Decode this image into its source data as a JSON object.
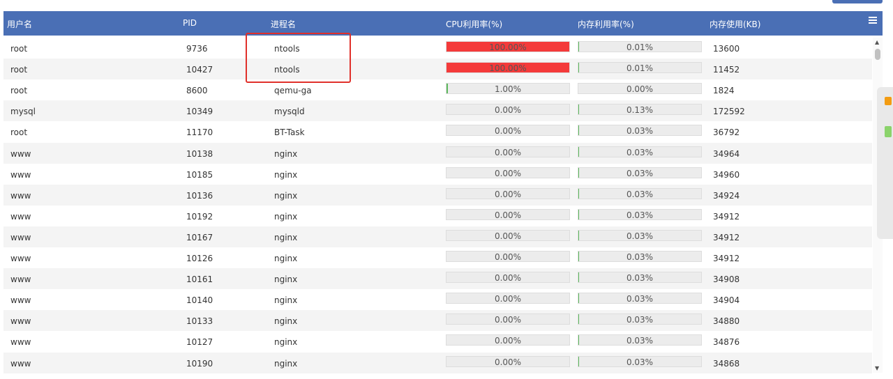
{
  "header": {
    "columns": [
      "用户名",
      "PID",
      "进程名",
      "CPU利用率(%)",
      "内存利用率(%)",
      "内存使用(KB)"
    ]
  },
  "table": {
    "rows": [
      [
        "root",
        "9736",
        "ntools",
        "100.00%",
        "0.01%",
        "13600"
      ],
      [
        "root",
        "10427",
        "ntools",
        "100.00%",
        "0.01%",
        "11452"
      ],
      [
        "root",
        "8600",
        "qemu-ga",
        "1.00%",
        "0.00%",
        "1824"
      ],
      [
        "mysql",
        "10349",
        "mysqld",
        "0.00%",
        "0.13%",
        "172592"
      ],
      [
        "root",
        "11170",
        "BT-Task",
        "0.00%",
        "0.03%",
        "36792"
      ],
      [
        "www",
        "10138",
        "nginx",
        "0.00%",
        "0.03%",
        "34964"
      ],
      [
        "www",
        "10185",
        "nginx",
        "0.00%",
        "0.03%",
        "34960"
      ],
      [
        "www",
        "10136",
        "nginx",
        "0.00%",
        "0.03%",
        "34924"
      ],
      [
        "www",
        "10192",
        "nginx",
        "0.00%",
        "0.03%",
        "34912"
      ],
      [
        "www",
        "10167",
        "nginx",
        "0.00%",
        "0.03%",
        "34912"
      ],
      [
        "www",
        "10126",
        "nginx",
        "0.00%",
        "0.03%",
        "34912"
      ],
      [
        "www",
        "10161",
        "nginx",
        "0.00%",
        "0.03%",
        "34908"
      ],
      [
        "www",
        "10140",
        "nginx",
        "0.00%",
        "0.03%",
        "34904"
      ],
      [
        "www",
        "10133",
        "nginx",
        "0.00%",
        "0.03%",
        "34880"
      ],
      [
        "www",
        "10127",
        "nginx",
        "0.00%",
        "0.03%",
        "34876"
      ],
      [
        "www",
        "10190",
        "nginx",
        "0.00%",
        "0.03%",
        "34868"
      ]
    ]
  }
}
